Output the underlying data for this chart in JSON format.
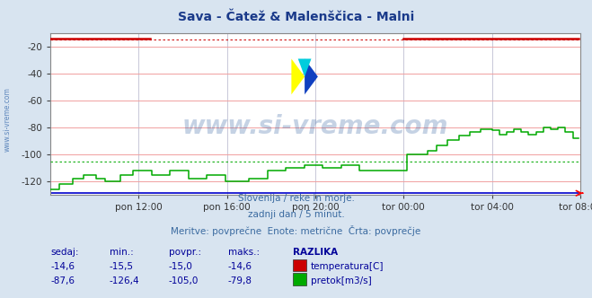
{
  "title": "Sava - Čatež & Malenščica - Malni",
  "title_color": "#1a3a8a",
  "bg_color": "#d8e4f0",
  "plot_bg_color": "#ffffff",
  "grid_color": "#f0a0a0",
  "grid_color_v": "#c8c8d8",
  "xlabel_ticks": [
    "pon 12:00",
    "pon 16:00",
    "pon 20:00",
    "tor 00:00",
    "tor 04:00",
    "tor 08:00"
  ],
  "ylabel_values": [
    -20,
    -40,
    -60,
    -80,
    -100,
    -120
  ],
  "ylim": [
    -130,
    -10
  ],
  "xlim": [
    0,
    288
  ],
  "tick_positions": [
    48,
    96,
    144,
    192,
    240,
    288
  ],
  "watermark": "www.si-vreme.com",
  "watermark_color": "#3060a0",
  "watermark_alpha": 0.28,
  "subtitle1": "Slovenija / reke in morje.",
  "subtitle2": "zadnji dan / 5 minut.",
  "subtitle3": "Meritve: povprečne  Enote: metrične  Črta: povprečje",
  "subtitle_color": "#3a6aa0",
  "table_header": [
    "sedaj:",
    "min.:",
    "povpr.:",
    "maks.:",
    "RAZLIKA"
  ],
  "table_row1": [
    "-14,6",
    "-15,5",
    "-15,0",
    "-14,6"
  ],
  "table_row2": [
    "-87,6",
    "-126,4",
    "-105,0",
    "-79,8"
  ],
  "table_color": "#000099",
  "label_temp": "temperatura[C]",
  "label_pretok": "pretok[m3/s]",
  "color_temp": "#cc0000",
  "color_pretok": "#00aa00",
  "color_visina": "#0000cc",
  "avg_temp": -15.0,
  "avg_pretok": -105.0,
  "num_points": 288,
  "sidebar_text": "www.si-vreme.com",
  "sidebar_color": "#4070b0"
}
